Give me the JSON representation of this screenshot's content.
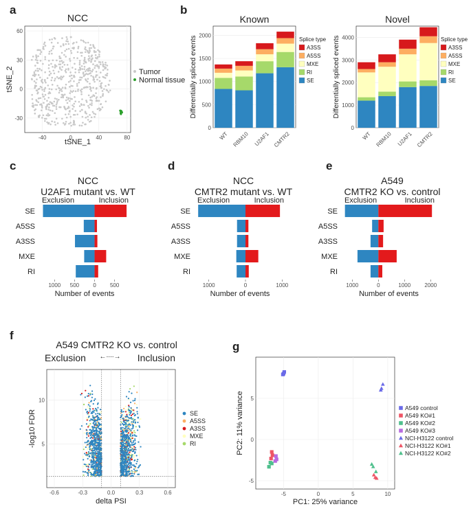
{
  "colors": {
    "SE": "#2e86c1",
    "RI": "#a6d96a",
    "MXE": "#ffffbf",
    "A5SS": "#fdae61",
    "A3SS": "#d7191c",
    "exclusion": "#2e86c1",
    "inclusion": "#e31a1c",
    "tumor": "#c8c8c8",
    "normal": "#2ca02c",
    "grid": "#ebebeb"
  },
  "chart_data": [
    {
      "panel": "a",
      "type": "scatter",
      "title": "NCC",
      "xlabel": "tSNE_1",
      "ylabel": "tSNE_2",
      "xlim": [
        -65,
        85
      ],
      "ylim": [
        -45,
        65
      ],
      "xticks": [
        "-40",
        "0",
        "40",
        "80"
      ],
      "yticks": [
        "-30",
        "0",
        "30",
        "60"
      ],
      "legend": [
        "Tumor",
        "Normal tissue"
      ],
      "series": [
        {
          "name": "Tumor",
          "n_points": 600,
          "x_range": [
            -55,
            65
          ],
          "y_range": [
            -38,
            55
          ]
        },
        {
          "name": "Normal tissue",
          "n_points": 18,
          "x_center": 71,
          "y_center": -24
        }
      ]
    },
    {
      "panel": "b-known",
      "type": "bar",
      "stacked": true,
      "title": "Known",
      "ylabel": "Differentially spliced events",
      "categories": [
        "WT",
        "RBM10",
        "U2AF1",
        "CMTR2"
      ],
      "ylim": [
        0,
        2200
      ],
      "yticks": [
        "0",
        "500",
        "1000",
        "1500",
        "2000"
      ],
      "legend_title": "Splice type",
      "legend": [
        "A3SS",
        "A5SS",
        "MXE",
        "RI",
        "SE"
      ],
      "series": [
        {
          "name": "SE",
          "values": [
            840,
            810,
            1180,
            1310
          ]
        },
        {
          "name": "RI",
          "values": [
            240,
            300,
            260,
            330
          ]
        },
        {
          "name": "MXE",
          "values": [
            110,
            130,
            150,
            180
          ]
        },
        {
          "name": "A5SS",
          "values": [
            90,
            100,
            110,
            120
          ]
        },
        {
          "name": "A3SS",
          "values": [
            90,
            100,
            130,
            140
          ]
        }
      ]
    },
    {
      "panel": "b-novel",
      "type": "bar",
      "stacked": true,
      "title": "Novel",
      "ylabel": "Differentially spliced events",
      "categories": [
        "WT",
        "RBM10",
        "U2AF1",
        "CMTR2"
      ],
      "ylim": [
        0,
        4500
      ],
      "yticks": [
        "0",
        "1000",
        "2000",
        "3000",
        "4000"
      ],
      "legend_title": "Splice type",
      "legend": [
        "A3SS",
        "A5SS",
        "MXE",
        "RI",
        "SE"
      ],
      "series": [
        {
          "name": "SE",
          "values": [
            1200,
            1400,
            1800,
            1850
          ]
        },
        {
          "name": "RI",
          "values": [
            150,
            200,
            250,
            250
          ]
        },
        {
          "name": "MXE",
          "values": [
            1100,
            1100,
            1200,
            1650
          ]
        },
        {
          "name": "A5SS",
          "values": [
            150,
            200,
            250,
            300
          ]
        },
        {
          "name": "A3SS",
          "values": [
            300,
            350,
            400,
            400
          ]
        }
      ]
    },
    {
      "panel": "c",
      "type": "bar",
      "orientation": "diverging",
      "title": "NCC",
      "subtitle": "U2AF1 mutant vs. WT",
      "xlabel": "Number of events",
      "left_label": "Exclusion",
      "right_label": "Inclusion",
      "categories": [
        "SE",
        "A5SS",
        "A3SS",
        "MXE",
        "RI"
      ],
      "xlim": [
        -1350,
        850
      ],
      "xticks": [
        "1000",
        "500",
        "0",
        "500"
      ],
      "exclusion": [
        1290,
        270,
        490,
        260,
        470
      ],
      "inclusion": [
        800,
        60,
        70,
        290,
        90
      ]
    },
    {
      "panel": "d",
      "type": "bar",
      "orientation": "diverging",
      "title": "NCC",
      "subtitle": "CMTR2 mutant vs. WT",
      "xlabel": "Number of events",
      "left_label": "Exclusion",
      "right_label": "Inclusion",
      "categories": [
        "SE",
        "A5SS",
        "A3SS",
        "MXE",
        "RI"
      ],
      "xlim": [
        -1350,
        1050
      ],
      "xticks": [
        "1000",
        "0",
        "1000"
      ],
      "exclusion": [
        1290,
        230,
        230,
        250,
        240
      ],
      "inclusion": [
        940,
        80,
        80,
        350,
        90
      ]
    },
    {
      "panel": "e",
      "type": "bar",
      "orientation": "diverging",
      "title": "A549",
      "subtitle": "CMTR2 KO vs. control",
      "xlabel": "Number of events",
      "left_label": "Exclusion",
      "right_label": "Inclusion",
      "categories": [
        "SE",
        "A5SS",
        "A3SS",
        "MXE",
        "RI"
      ],
      "xlim": [
        -1350,
        2150
      ],
      "xticks": [
        "1000",
        "0",
        "1000",
        "2000"
      ],
      "exclusion": [
        1280,
        240,
        300,
        800,
        300
      ],
      "inclusion": [
        2050,
        200,
        180,
        700,
        150
      ]
    },
    {
      "panel": "f",
      "type": "scatter",
      "title": "A549 CMTR2 KO vs. control",
      "xlabel": "delta PSI",
      "ylabel": "-log10 FDR",
      "left_label": "Exclusion",
      "right_label": "Inclusion",
      "arrow_symbol": "←∙∙∙∙→",
      "xlim": [
        -0.68,
        0.68
      ],
      "ylim": [
        0,
        13.5
      ],
      "xticks": [
        "-0.6",
        "-0.3",
        "0.0",
        "0.3",
        "0.6"
      ],
      "yticks": [
        "5",
        "10"
      ],
      "cutoffs": {
        "dpsi": [
          -0.1,
          0.1
        ],
        "fdr": 1.3
      },
      "legend": [
        "SE",
        "A5SS",
        "A3SS",
        "MXE",
        "RI"
      ],
      "series": [
        {
          "name": "SE",
          "n_points": 1100
        },
        {
          "name": "A5SS",
          "n_points": 120
        },
        {
          "name": "A3SS",
          "n_points": 120
        },
        {
          "name": "MXE",
          "n_points": 200
        },
        {
          "name": "RI",
          "n_points": 160
        }
      ]
    },
    {
      "panel": "g",
      "type": "scatter",
      "title": "",
      "xlabel": "PC1: 25% variance",
      "ylabel": "PC2: 11% variance",
      "xlim": [
        -9,
        11
      ],
      "ylim": [
        -6,
        10
      ],
      "xticks": [
        "-5",
        "0",
        "5",
        "10"
      ],
      "yticks": [
        "-5",
        "0",
        "5"
      ],
      "legend": [
        "A549 control",
        "A549 KO#1",
        "A549 KO#2",
        "A549 KO#3",
        "NCI-H3122 control",
        "NCI-H3122 KO#1",
        "NCI-H3122 KO#2"
      ],
      "series": [
        {
          "name": "A549 control",
          "shape": "square",
          "color": "#6a6ae8",
          "points": [
            [
              -4.9,
              8.2
            ],
            [
              -5.0,
              8.0
            ],
            [
              -5.1,
              7.9
            ]
          ]
        },
        {
          "name": "A549 KO#1",
          "shape": "square",
          "color": "#ee5566",
          "points": [
            [
              -6.7,
              -1.5
            ],
            [
              -6.6,
              -1.9
            ],
            [
              -6.8,
              -2.3
            ]
          ]
        },
        {
          "name": "A549 KO#2",
          "shape": "square",
          "color": "#4fc08d",
          "points": [
            [
              -6.9,
              -2.8
            ],
            [
              -6.7,
              -2.9
            ],
            [
              -7.1,
              -3.3
            ]
          ]
        },
        {
          "name": "A549 KO#3",
          "shape": "square",
          "color": "#b86be0",
          "points": [
            [
              -6.1,
              -2.0
            ],
            [
              -6.0,
              -2.4
            ],
            [
              -6.2,
              -2.6
            ]
          ]
        },
        {
          "name": "NCI-H3122 control",
          "shape": "triangle",
          "color": "#6a6ae8",
          "points": [
            [
              9.3,
              6.7
            ],
            [
              9.1,
              6.2
            ],
            [
              9.0,
              6.0
            ]
          ]
        },
        {
          "name": "NCI-H3122 KO#1",
          "shape": "triangle",
          "color": "#ee5566",
          "points": [
            [
              8.0,
              -4.3
            ],
            [
              8.2,
              -4.6
            ],
            [
              8.4,
              -4.7
            ]
          ]
        },
        {
          "name": "NCI-H3122 KO#2",
          "shape": "triangle",
          "color": "#4fc08d",
          "points": [
            [
              7.7,
              -3.0
            ],
            [
              7.9,
              -3.3
            ],
            [
              8.3,
              -3.9
            ]
          ]
        }
      ]
    }
  ]
}
